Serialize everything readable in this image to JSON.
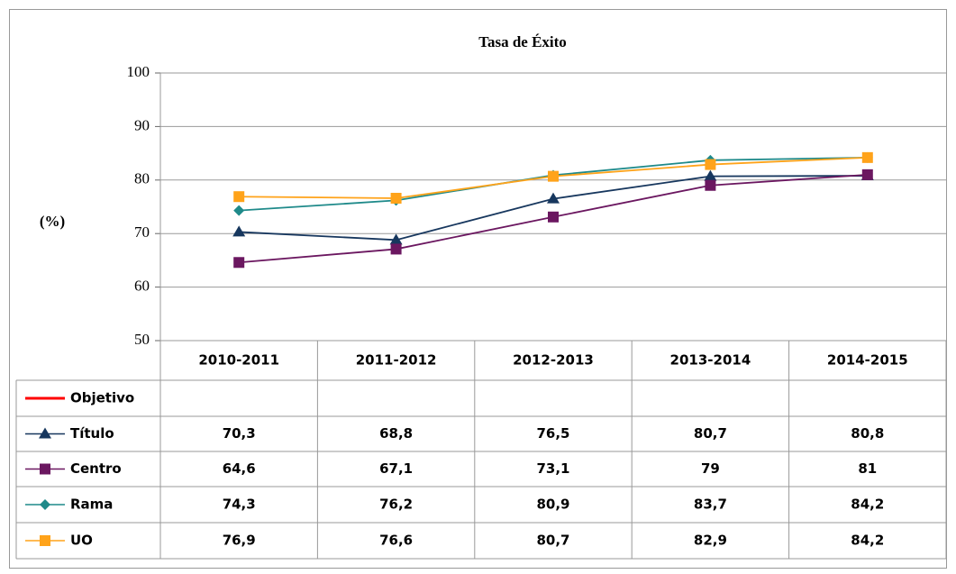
{
  "chart_data": {
    "type": "line",
    "title": "Tasa de Éxito",
    "y_label": "(%)",
    "categories": [
      "2010-2011",
      "2011-2012",
      "2012-2013",
      "2013-2014",
      "2014-2015"
    ],
    "ylim": [
      50,
      100
    ],
    "yticks": [
      50,
      60,
      70,
      80,
      90,
      100
    ],
    "grid": true,
    "legend": "data-table",
    "series": [
      {
        "name": "Objetivo",
        "color": "#ff0000",
        "marker": "none",
        "values": [
          null,
          null,
          null,
          null,
          null
        ]
      },
      {
        "name": "Título",
        "color": "#17375e",
        "marker": "triangle",
        "values": [
          70.3,
          68.8,
          76.5,
          80.7,
          80.8
        ],
        "value_labels": [
          "70,3",
          "68,8",
          "76,5",
          "80,7",
          "80,8"
        ]
      },
      {
        "name": "Centro",
        "color": "#6b1760",
        "marker": "square",
        "values": [
          64.6,
          67.1,
          73.1,
          79,
          81
        ],
        "value_labels": [
          "64,6",
          "67,1",
          "73,1",
          "79",
          "81"
        ]
      },
      {
        "name": "Rama",
        "color": "#1f8a8a",
        "marker": "diamond",
        "values": [
          74.3,
          76.2,
          80.9,
          83.7,
          84.2
        ],
        "value_labels": [
          "74,3",
          "76,2",
          "80,9",
          "83,7",
          "84,2"
        ]
      },
      {
        "name": "UO",
        "color": "#ffa31a",
        "marker": "square",
        "values": [
          76.9,
          76.6,
          80.7,
          82.9,
          84.2
        ],
        "value_labels": [
          "76,9",
          "76,6",
          "80,7",
          "82,9",
          "84,2"
        ]
      }
    ]
  }
}
